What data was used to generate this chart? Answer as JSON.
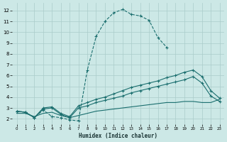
{
  "xlabel": "Humidex (Indice chaleur)",
  "bg_color": "#cce8e6",
  "grid_color": "#aaccca",
  "line_color": "#1a6e6e",
  "xlim": [
    -0.5,
    23.5
  ],
  "ylim": [
    1.5,
    12.7
  ],
  "xticks": [
    0,
    1,
    2,
    3,
    4,
    5,
    6,
    7,
    8,
    9,
    10,
    11,
    12,
    13,
    14,
    15,
    16,
    17,
    18,
    19,
    20,
    21,
    22,
    23
  ],
  "yticks": [
    2,
    3,
    4,
    5,
    6,
    7,
    8,
    9,
    10,
    11,
    12
  ],
  "series": [
    {
      "x": [
        0,
        1,
        2,
        3,
        4,
        5,
        6,
        7,
        8,
        9,
        10,
        11,
        12,
        13,
        14,
        15,
        16,
        17,
        18,
        19,
        20,
        21,
        22,
        23
      ],
      "y": [
        2.7,
        2.6,
        2.1,
        2.8,
        2.2,
        2.1,
        1.9,
        1.8,
        6.5,
        9.6,
        11.0,
        11.8,
        12.1,
        11.65,
        11.5,
        11.1,
        9.5,
        8.6,
        null,
        null,
        null,
        null,
        null,
        null
      ],
      "linestyle": "--",
      "marker": "+"
    },
    {
      "x": [
        0,
        1,
        2,
        3,
        4,
        5,
        6,
        7,
        8,
        9,
        10,
        11,
        12,
        13,
        14,
        15,
        16,
        17,
        18,
        19,
        20,
        21,
        22,
        23
      ],
      "y": [
        2.7,
        2.6,
        2.1,
        3.0,
        3.1,
        2.5,
        2.2,
        3.2,
        3.5,
        3.8,
        4.0,
        4.3,
        4.6,
        4.9,
        5.1,
        5.3,
        5.5,
        5.8,
        6.0,
        6.3,
        6.5,
        5.9,
        4.6,
        3.9
      ],
      "linestyle": "-",
      "marker": "+"
    },
    {
      "x": [
        0,
        1,
        2,
        3,
        4,
        5,
        6,
        7,
        8,
        9,
        10,
        11,
        12,
        13,
        14,
        15,
        16,
        17,
        18,
        19,
        20,
        21,
        22,
        23
      ],
      "y": [
        2.7,
        2.6,
        2.1,
        2.9,
        3.0,
        2.4,
        2.1,
        3.0,
        3.2,
        3.5,
        3.7,
        3.9,
        4.1,
        4.4,
        4.6,
        4.8,
        5.0,
        5.2,
        5.4,
        5.6,
        5.9,
        5.3,
        4.1,
        3.6
      ],
      "linestyle": "-",
      "marker": "+"
    },
    {
      "x": [
        0,
        1,
        2,
        3,
        4,
        5,
        6,
        7,
        8,
        9,
        10,
        11,
        12,
        13,
        14,
        15,
        16,
        17,
        18,
        19,
        20,
        21,
        22,
        23
      ],
      "y": [
        2.5,
        2.5,
        2.2,
        2.5,
        2.6,
        2.3,
        2.1,
        2.3,
        2.5,
        2.7,
        2.8,
        2.9,
        3.0,
        3.1,
        3.2,
        3.3,
        3.4,
        3.5,
        3.5,
        3.6,
        3.6,
        3.5,
        3.5,
        3.8
      ],
      "linestyle": "-",
      "marker": null
    }
  ]
}
